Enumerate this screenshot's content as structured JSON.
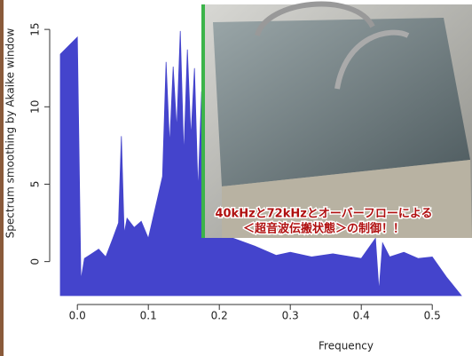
{
  "chart_data": {
    "type": "area",
    "xlabel": "Frequency",
    "ylabel": "Spectrum smoothing by  Akaike  window",
    "x": [
      -0.024,
      0.0,
      0.005,
      0.01,
      0.02,
      0.03,
      0.04,
      0.05,
      0.058,
      0.062,
      0.066,
      0.07,
      0.08,
      0.09,
      0.1,
      0.11,
      0.12,
      0.125,
      0.13,
      0.135,
      0.14,
      0.145,
      0.15,
      0.155,
      0.16,
      0.165,
      0.17,
      0.175,
      0.18,
      0.19,
      0.2,
      0.22,
      0.25,
      0.28,
      0.3,
      0.33,
      0.36,
      0.4,
      0.42,
      0.425,
      0.43,
      0.44,
      0.46,
      0.48,
      0.5,
      0.52,
      0.541
    ],
    "values": [
      13.4,
      14.5,
      -1.2,
      0.2,
      0.5,
      0.8,
      0.3,
      1.5,
      2.5,
      8.1,
      1.8,
      2.8,
      2.2,
      2.6,
      1.5,
      3.5,
      5.5,
      12.9,
      7.5,
      12.6,
      8.5,
      14.9,
      6.8,
      13.7,
      8.0,
      12.5,
      4.5,
      11.0,
      5.0,
      3.2,
      2.0,
      1.5,
      1.0,
      0.4,
      0.6,
      0.3,
      0.5,
      0.2,
      1.5,
      -1.9,
      1.2,
      0.3,
      0.6,
      0.2,
      0.3,
      -1.0,
      -2.2
    ],
    "color": "#4444cc",
    "xlim": [
      -0.024,
      0.541
    ],
    "ylim": [
      -2.2,
      16.9
    ],
    "xticks": [
      {
        "value": 0,
        "label": "0.0"
      },
      {
        "value": 0.1,
        "label": "0.1"
      },
      {
        "value": 0.2,
        "label": "0.2"
      },
      {
        "value": 0.3,
        "label": "0.3"
      },
      {
        "value": 0.4,
        "label": "0.4"
      },
      {
        "value": 0.5,
        "label": "0.5"
      }
    ],
    "yticks": [
      0,
      5,
      10,
      15
    ],
    "annotation": [
      "40kHzと72kHzとオーバーフローによる",
      "＜超音波伝搬状態＞の制御！！"
    ]
  }
}
